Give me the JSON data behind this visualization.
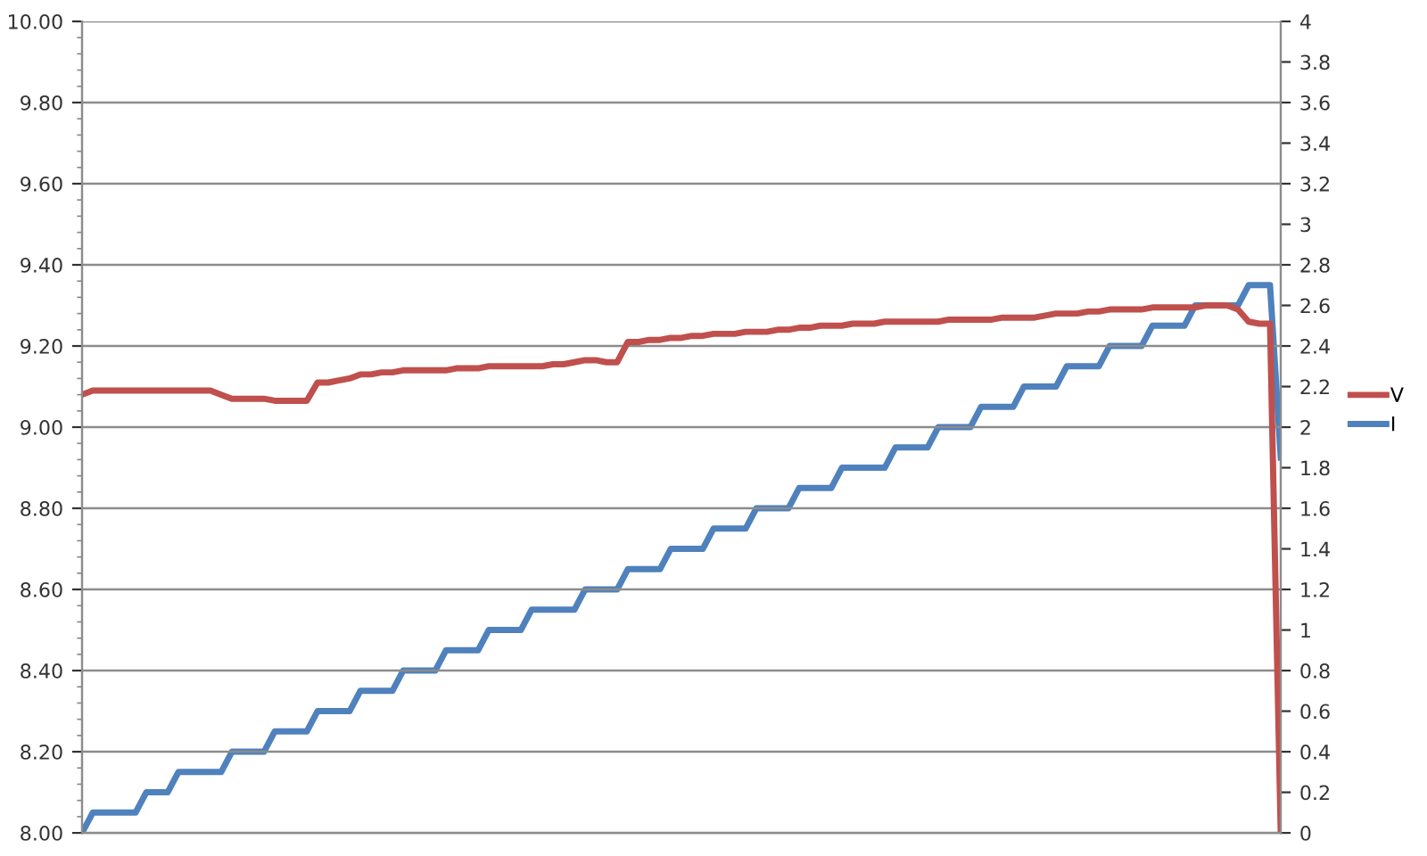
{
  "chart_data": {
    "type": "line",
    "categories": [
      null,
      null,
      null,
      null,
      null,
      null,
      null,
      null,
      null,
      null,
      null,
      null,
      null,
      null,
      null,
      null,
      null,
      null,
      null,
      null,
      null,
      null,
      null,
      null,
      null,
      null,
      null,
      null,
      null,
      null,
      null,
      null,
      null,
      null,
      null,
      null,
      null,
      null,
      null,
      null,
      null,
      null,
      null,
      null,
      null,
      null,
      null,
      null,
      null,
      null,
      null,
      null,
      null,
      null,
      null,
      null,
      null,
      null,
      null,
      null,
      null,
      null,
      null,
      null,
      null,
      null,
      null,
      null,
      null,
      null,
      null,
      null,
      null,
      null,
      null,
      null,
      null,
      null,
      null,
      null,
      null,
      null,
      null,
      null,
      null,
      null,
      null,
      null,
      null,
      null,
      null,
      null,
      null,
      null,
      null,
      null,
      null,
      null,
      null,
      null,
      null,
      null,
      null,
      null,
      null,
      null,
      null,
      null,
      null,
      null,
      null,
      null,
      null
    ],
    "series": [
      {
        "name": "V",
        "color": "#c0504d",
        "values": [
          9.08,
          9.09,
          9.09,
          9.09,
          9.09,
          9.09,
          9.09,
          9.09,
          9.09,
          9.09,
          9.09,
          9.09,
          9.09,
          9.08,
          9.07,
          9.07,
          9.07,
          9.07,
          9.065,
          9.065,
          9.065,
          9.065,
          9.11,
          9.11,
          9.115,
          9.12,
          9.13,
          9.13,
          9.135,
          9.135,
          9.14,
          9.14,
          9.14,
          9.14,
          9.14,
          9.145,
          9.145,
          9.145,
          9.15,
          9.15,
          9.15,
          9.15,
          9.15,
          9.15,
          9.155,
          9.155,
          9.16,
          9.165,
          9.165,
          9.16,
          9.16,
          9.21,
          9.21,
          9.215,
          9.215,
          9.22,
          9.22,
          9.225,
          9.225,
          9.23,
          9.23,
          9.23,
          9.235,
          9.235,
          9.235,
          9.24,
          9.24,
          9.245,
          9.245,
          9.25,
          9.25,
          9.25,
          9.255,
          9.255,
          9.255,
          9.26,
          9.26,
          9.26,
          9.26,
          9.26,
          9.26,
          9.265,
          9.265,
          9.265,
          9.265,
          9.265,
          9.27,
          9.27,
          9.27,
          9.27,
          9.275,
          9.28,
          9.28,
          9.28,
          9.285,
          9.285,
          9.29,
          9.29,
          9.29,
          9.29,
          9.295,
          9.295,
          9.295,
          9.295,
          9.295,
          9.3,
          9.3,
          9.3,
          9.29,
          9.26,
          9.255,
          9.255,
          8.0
        ]
      },
      {
        "name": "I",
        "color": "#4f81bd",
        "axis": "y2",
        "values": [
          0,
          0.1,
          0.1,
          0.1,
          0.1,
          0.1,
          0.2,
          0.2,
          0.2,
          0.3,
          0.3,
          0.3,
          0.3,
          0.3,
          0.4,
          0.4,
          0.4,
          0.4,
          0.5,
          0.5,
          0.5,
          0.5,
          0.6,
          0.6,
          0.6,
          0.6,
          0.7,
          0.7,
          0.7,
          0.7,
          0.8,
          0.8,
          0.8,
          0.8,
          0.9,
          0.9,
          0.9,
          0.9,
          1.0,
          1.0,
          1.0,
          1.0,
          1.1,
          1.1,
          1.1,
          1.1,
          1.1,
          1.2,
          1.2,
          1.2,
          1.2,
          1.3,
          1.3,
          1.3,
          1.3,
          1.4,
          1.4,
          1.4,
          1.4,
          1.5,
          1.5,
          1.5,
          1.5,
          1.6,
          1.6,
          1.6,
          1.6,
          1.7,
          1.7,
          1.7,
          1.7,
          1.8,
          1.8,
          1.8,
          1.8,
          1.8,
          1.9,
          1.9,
          1.9,
          1.9,
          2.0,
          2.0,
          2.0,
          2.0,
          2.1,
          2.1,
          2.1,
          2.1,
          2.2,
          2.2,
          2.2,
          2.2,
          2.3,
          2.3,
          2.3,
          2.3,
          2.4,
          2.4,
          2.4,
          2.4,
          2.5,
          2.5,
          2.5,
          2.5,
          2.6,
          2.6,
          2.6,
          2.6,
          2.6,
          2.7,
          2.7,
          2.7,
          1.85
        ]
      }
    ],
    "ylim": [
      8,
      10
    ],
    "yticks": [
      {
        "value": 8,
        "label": "8.00"
      },
      {
        "value": 8.2,
        "label": "8.20"
      },
      {
        "value": 8.4,
        "label": "8.40"
      },
      {
        "value": 8.6,
        "label": "8.60"
      },
      {
        "value": 8.8,
        "label": "8.80"
      },
      {
        "value": 9,
        "label": "9.00"
      },
      {
        "value": 9.2,
        "label": "9.20"
      },
      {
        "value": 9.4,
        "label": "9.40"
      },
      {
        "value": 9.6,
        "label": "9.60"
      },
      {
        "value": 9.8,
        "label": "9.80"
      },
      {
        "value": 10,
        "label": "10.00"
      }
    ],
    "y2lim": [
      0,
      4
    ],
    "y2ticks": [
      0,
      0.2,
      0.4,
      0.6,
      0.8,
      1,
      1.2,
      1.4,
      1.6,
      1.8,
      2,
      2.2,
      2.4,
      2.6,
      2.8,
      3,
      3.2,
      3.4,
      3.6,
      3.8,
      4
    ],
    "grid": "y",
    "legend": "right",
    "tick_labels": "y",
    "marker": "none",
    "line_style": "solid"
  }
}
